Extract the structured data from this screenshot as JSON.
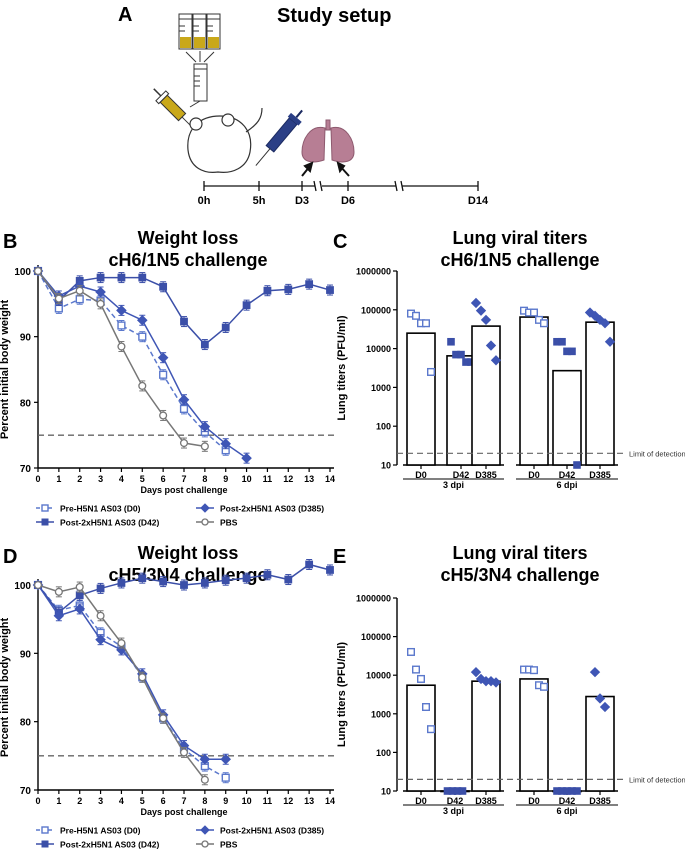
{
  "panels": {
    "A": {
      "letter": "A",
      "title": "Study setup",
      "timeline_labels": [
        "0h",
        "5h",
        "D3",
        "D6",
        "D14"
      ]
    },
    "B": {
      "letter": "B"
    },
    "C": {
      "letter": "C",
      "lod_label": "Limit of detection"
    },
    "D": {
      "letter": "D"
    },
    "E": {
      "letter": "E",
      "lod_label": "Limit of detection"
    }
  },
  "colors": {
    "pre": "#5b78cc",
    "post42": "#3b4fa8",
    "post385": "#3f56b5",
    "pbs": "#777777",
    "lung": "#b77e94",
    "tube_fill": "#c9a81a",
    "syringe": "#2b3f86"
  },
  "chart_data": [
    {
      "id": "B",
      "type": "line",
      "title": "Weight loss",
      "subtitle": "cH6/1N5 challenge",
      "xlabel": "Days post challenge",
      "ylabel": "Percent initial body weight",
      "x": [
        0,
        1,
        2,
        3,
        4,
        5,
        6,
        7,
        8,
        9,
        10,
        11,
        12,
        13,
        14
      ],
      "xlim": [
        0,
        14
      ],
      "ylim": [
        70,
        100
      ],
      "yticks": [
        70,
        80,
        90,
        100
      ],
      "threshold": 75,
      "series": [
        {
          "name": "Pre-H5N1 AS03 (D0)",
          "marker": "open-square",
          "dashed": true,
          "color": "#5b78cc",
          "x": [
            0,
            1,
            2,
            3,
            4,
            5,
            6,
            7,
            8,
            9
          ],
          "y": [
            100,
            94.3,
            95.7,
            95.5,
            91.7,
            90,
            84.2,
            79,
            75.5,
            72.7
          ]
        },
        {
          "name": "Post-2xH5N1 AS03 (D42)",
          "marker": "filled-square",
          "dashed": false,
          "color": "#3b4fa8",
          "x": [
            0,
            1,
            2,
            3,
            4,
            5,
            6,
            7,
            8,
            9,
            10,
            11,
            12,
            13,
            14
          ],
          "y": [
            100,
            95.5,
            98.5,
            99,
            99,
            99,
            97.6,
            92.3,
            88.8,
            91.4,
            94.8,
            97,
            97.2,
            98,
            97.1
          ]
        },
        {
          "name": "Post-2xH5N1 AS03 (D385)",
          "marker": "filled-diamond",
          "dashed": false,
          "color": "#3f56b5",
          "x": [
            0,
            1,
            2,
            3,
            4,
            5,
            6,
            7,
            8,
            9,
            10
          ],
          "y": [
            100,
            96.2,
            97.7,
            96.8,
            94,
            92.5,
            86.8,
            80.4,
            76.3,
            73.7,
            71.5
          ]
        },
        {
          "name": "PBS",
          "marker": "open-circle",
          "dashed": false,
          "color": "#777777",
          "x": [
            0,
            1,
            2,
            3,
            4,
            5,
            6,
            7,
            8
          ],
          "y": [
            100,
            95.8,
            97,
            95,
            88.5,
            82.5,
            78,
            73.8,
            73.3
          ]
        }
      ]
    },
    {
      "id": "C",
      "type": "bar",
      "title": "Lung viral titers",
      "subtitle": "cH6/1N5 challenge",
      "ylabel": "Lung titers (PFU/ml)",
      "yscale": "log",
      "ylim": [
        10,
        1000000
      ],
      "yticks": [
        "10",
        "100",
        "1000",
        "10000",
        "100000",
        "1000000"
      ],
      "categories": [
        "D0",
        "D42",
        "D385",
        "D0",
        "D42",
        "D385"
      ],
      "groups": [
        "3 dpi",
        "6 dpi"
      ],
      "bar_values": [
        25000,
        6500,
        38000,
        65000,
        2700,
        48000
      ],
      "points": [
        [
          80000,
          70000,
          45000,
          45000,
          2500
        ],
        [
          15000,
          7000,
          7000,
          4500,
          4500
        ],
        [
          150000,
          95000,
          55000,
          12000,
          5000
        ],
        [
          95000,
          85000,
          85000,
          55000,
          45000
        ],
        [
          15000,
          15000,
          8500,
          8500,
          10
        ],
        [
          85000,
          70000,
          55000,
          45000,
          15000
        ]
      ],
      "markers": [
        "open-square",
        "filled-square",
        "filled-diamond",
        "open-square",
        "filled-square",
        "filled-diamond"
      ],
      "limit_of_detection": 20
    },
    {
      "id": "D",
      "type": "line",
      "title": "Weight loss",
      "subtitle": "cH5/3N4 challenge",
      "xlabel": "Days post challenge",
      "ylabel": "Percent initial body weight",
      "x": [
        0,
        1,
        2,
        3,
        4,
        5,
        6,
        7,
        8,
        9,
        10,
        11,
        12,
        13,
        14
      ],
      "xlim": [
        0,
        14
      ],
      "ylim": [
        70,
        100
      ],
      "yticks": [
        70,
        80,
        90,
        100
      ],
      "threshold": 75,
      "series": [
        {
          "name": "Pre-H5N1 AS03 (D0)",
          "marker": "open-square",
          "dashed": true,
          "color": "#5b78cc",
          "x": [
            0,
            1,
            2,
            3,
            4,
            5,
            6,
            7,
            8,
            9
          ],
          "y": [
            100,
            96.3,
            97,
            93,
            91,
            86.5,
            80.5,
            76,
            73.5,
            71.8
          ]
        },
        {
          "name": "Post-2xH5N1 AS03 (D42)",
          "marker": "filled-square",
          "dashed": false,
          "color": "#3b4fa8",
          "x": [
            0,
            1,
            2,
            3,
            4,
            5,
            6,
            7,
            8,
            9,
            10,
            11,
            12,
            13,
            14
          ],
          "y": [
            100,
            96,
            98.5,
            99.5,
            100.3,
            101,
            100.5,
            100,
            100.3,
            100.7,
            101,
            101.5,
            100.8,
            103,
            102.2
          ]
        },
        {
          "name": "Post-2xH5N1 AS03 (D385)",
          "marker": "filled-diamond",
          "dashed": false,
          "color": "#3f56b5",
          "x": [
            0,
            1,
            2,
            3,
            4,
            5,
            6,
            7,
            8,
            9
          ],
          "y": [
            100,
            95.5,
            96.5,
            92,
            90.5,
            87,
            81,
            76.5,
            74.5,
            74.5
          ]
        },
        {
          "name": "PBS",
          "marker": "open-circle",
          "dashed": false,
          "color": "#777777",
          "x": [
            0,
            1,
            2,
            3,
            4,
            5,
            6,
            7,
            8
          ],
          "y": [
            100,
            99,
            99.7,
            95.5,
            91.5,
            86.5,
            80.5,
            75.5,
            71.5
          ]
        }
      ]
    },
    {
      "id": "E",
      "type": "bar",
      "title": "Lung viral titers",
      "subtitle": "cH5/3N4 challenge",
      "ylabel": "Lung titers (PFU/ml)",
      "yscale": "log",
      "ylim": [
        10,
        1000000
      ],
      "yticks": [
        "10",
        "100",
        "1000",
        "10000",
        "100000",
        "1000000"
      ],
      "categories": [
        "D0",
        "D42",
        "D385",
        "D0",
        "D42",
        "D385"
      ],
      "groups": [
        "3 dpi",
        "6 dpi"
      ],
      "bar_values": [
        5500,
        10,
        7000,
        8000,
        10,
        2800
      ],
      "points": [
        [
          40000,
          14000,
          8000,
          1500,
          400
        ],
        [
          10,
          10,
          10,
          10
        ],
        [
          12000,
          8000,
          7000,
          7000,
          6500
        ],
        [
          14000,
          14000,
          13500,
          5500,
          5000
        ],
        [
          10,
          10,
          10,
          10,
          10
        ],
        [
          12000,
          2500,
          1500
        ]
      ],
      "markers": [
        "open-square",
        "filled-square",
        "filled-diamond",
        "open-square",
        "filled-square",
        "filled-diamond"
      ],
      "limit_of_detection": 20
    }
  ]
}
